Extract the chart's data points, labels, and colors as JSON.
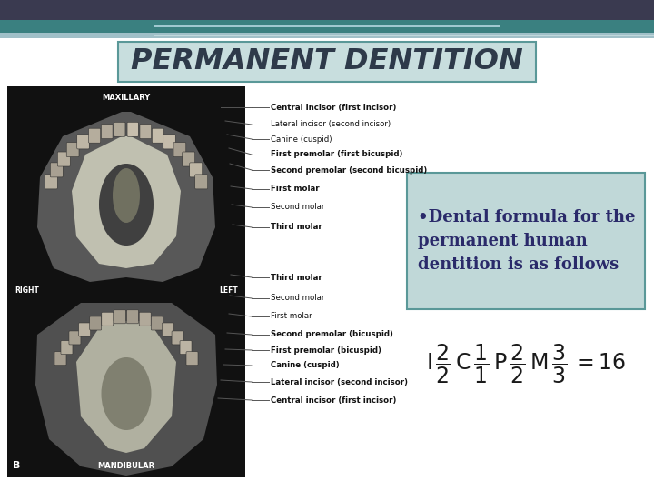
{
  "title": "PERMANENT DENTITION",
  "title_bg": "#c8dede",
  "title_color": "#2e3a4a",
  "slide_bg": "#ffffff",
  "header_bar1_color": "#3a3a50",
  "header_bar2_color": "#3a8080",
  "header_bar3_color": "#a0c0c8",
  "text_box_bg": "#c0d8d8",
  "text_box_border": "#5a9898",
  "bullet_text": "•Dental formula for the\npermanent human\ndentition is as follows",
  "bullet_color": "#2a2a6a",
  "formula_color": "#1a1a1a",
  "upper_labels": [
    "Central incisor (first incisor)",
    "Lateral incisor (second incisor)",
    "Canine (cuspid)",
    "First premolar (first bicuspid)",
    "Second premolar (second bicuspid)",
    "First molar",
    "Second molar",
    "Third molar"
  ],
  "lower_labels": [
    "Third molar",
    "Second molar",
    "First molar",
    "Second premolar (bicuspid)",
    "First premolar (bicuspid)",
    "Canine (cuspid)",
    "Lateral incisor (second incisor)",
    "Central incisor (first incisor)"
  ]
}
